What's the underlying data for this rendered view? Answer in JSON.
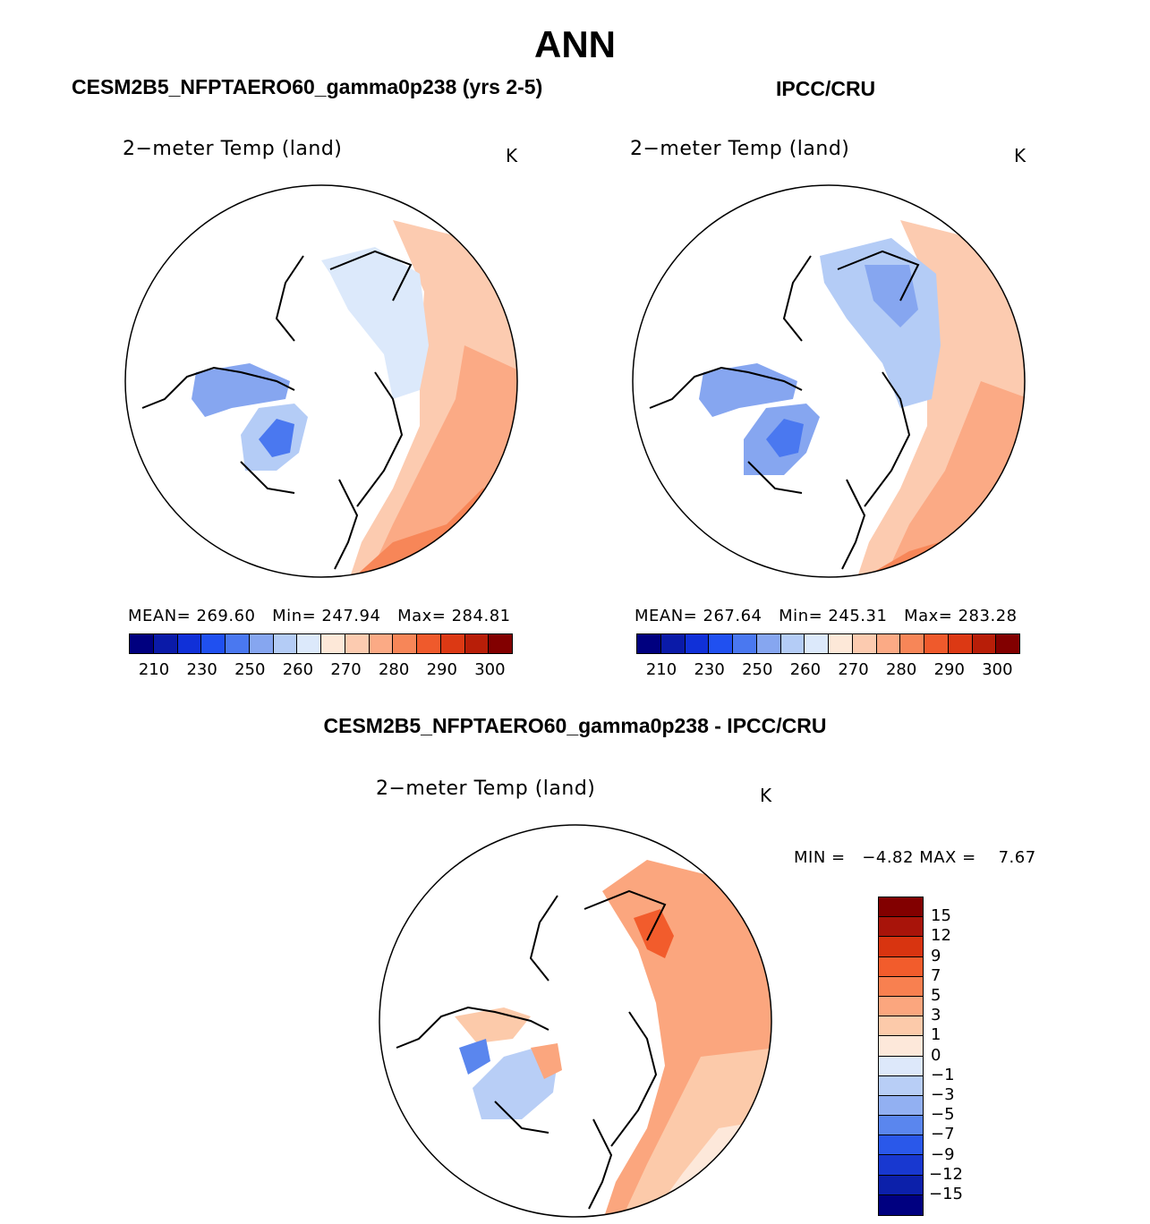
{
  "main_title": "ANN",
  "panel_left": {
    "title": "CESM2B5_NFPTAERO60_gamma0p238 (yrs 2-5)",
    "variable": "2−meter Temp (land)",
    "unit": "K",
    "mean_label": "MEAN=",
    "mean": "269.60",
    "min_label": "Min=",
    "min": "247.94",
    "max_label": "Max=",
    "max": "284.81"
  },
  "panel_right": {
    "title": "IPCC/CRU",
    "variable": "2−meter Temp (land)",
    "unit": "K",
    "mean_label": "MEAN=",
    "mean": "267.64",
    "min_label": "Min=",
    "min": "245.31",
    "max_label": "Max=",
    "max": "283.28"
  },
  "panel_diff": {
    "title": "CESM2B5_NFPTAERO60_gamma0p238 - IPCC/CRU",
    "variable": "2−meter Temp (land)",
    "unit": "K",
    "min_label": "MIN =",
    "min": "−4.82",
    "max_label": "MAX =",
    "max": "7.67"
  },
  "abs_colorbar": {
    "colors": [
      "#00007f",
      "#0a1aa8",
      "#1030d8",
      "#2050f0",
      "#4a78f0",
      "#86a6f0",
      "#b4ccf6",
      "#dce9fb",
      "#fde8d8",
      "#fccbb0",
      "#fbaa85",
      "#f78658",
      "#ef5a2c",
      "#dc3914",
      "#b81e08",
      "#820000"
    ],
    "tick_labels": [
      "210",
      "230",
      "250",
      "260",
      "270",
      "280",
      "290",
      "300"
    ]
  },
  "diff_colorbar": {
    "colors": [
      "#820000",
      "#a8140a",
      "#d83410",
      "#f25c2c",
      "#f88050",
      "#fba67e",
      "#fccaaa",
      "#fde8da",
      "#dde8fa",
      "#b8cef6",
      "#92b0f2",
      "#5a86ee",
      "#2a58ea",
      "#1838d0",
      "#0c20aa",
      "#000080"
    ],
    "tick_labels": [
      "15",
      "12",
      "9",
      "7",
      "5",
      "3",
      "1",
      "0",
      "−1",
      "−3",
      "−5",
      "−7",
      "−9",
      "−12",
      "−15"
    ]
  }
}
